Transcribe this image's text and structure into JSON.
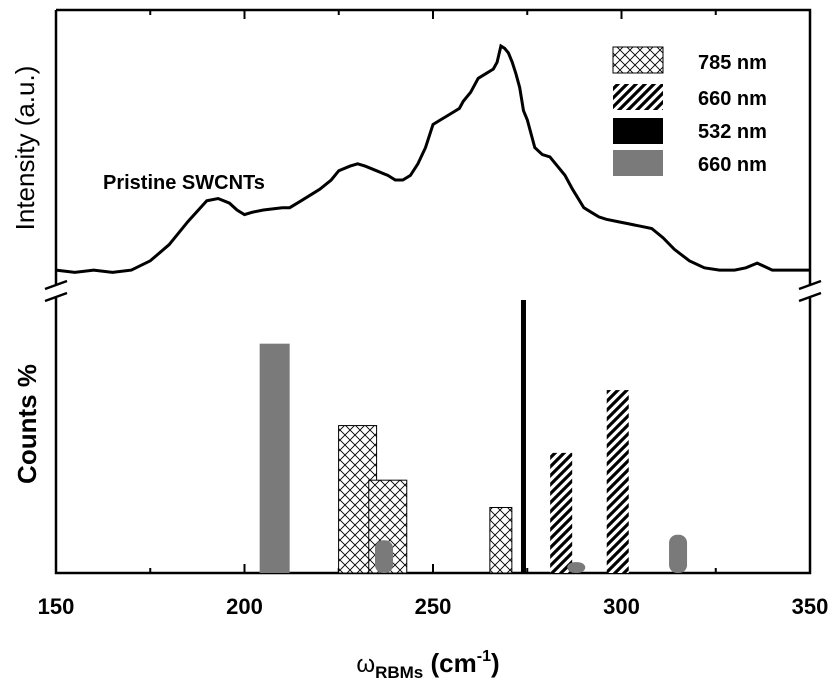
{
  "chart_data": {
    "type": "bar",
    "xlabel": "ω",
    "xlabel_sub": "RBMs",
    "xlabel_unit_pre": " (cm",
    "xlabel_unit_sup": "-1",
    "xlabel_unit_post": ")",
    "xlim": [
      150,
      350
    ],
    "xticks": [
      150,
      200,
      250,
      300,
      350
    ],
    "top_panel": {
      "ylabel": "Intensity (a.u.)",
      "annotation": "Pristine SWCNTs",
      "spectrum": {
        "x": [
          150,
          155,
          160,
          165,
          170,
          175,
          180,
          185,
          190,
          193,
          196,
          198,
          200,
          202,
          205,
          210,
          212,
          215,
          218,
          220,
          223,
          225,
          228,
          230,
          232,
          235,
          238,
          240,
          242,
          244,
          246,
          248,
          250,
          252,
          253,
          255,
          257,
          258,
          260,
          262,
          264,
          266,
          267,
          268,
          269,
          270,
          271,
          272,
          273,
          274,
          275,
          277,
          279,
          281,
          283,
          285,
          287,
          290,
          292,
          294,
          296,
          299,
          302,
          305,
          308,
          311,
          314,
          318,
          322,
          326,
          330,
          333,
          336,
          340,
          345,
          350
        ],
        "y": [
          0.03,
          0.02,
          0.03,
          0.02,
          0.03,
          0.07,
          0.14,
          0.24,
          0.33,
          0.34,
          0.32,
          0.29,
          0.27,
          0.28,
          0.29,
          0.3,
          0.3,
          0.33,
          0.36,
          0.38,
          0.42,
          0.46,
          0.48,
          0.49,
          0.48,
          0.46,
          0.44,
          0.42,
          0.42,
          0.44,
          0.49,
          0.56,
          0.66,
          0.68,
          0.69,
          0.71,
          0.73,
          0.76,
          0.8,
          0.86,
          0.88,
          0.9,
          0.93,
          1.0,
          0.99,
          0.97,
          0.93,
          0.88,
          0.82,
          0.72,
          0.68,
          0.56,
          0.53,
          0.52,
          0.48,
          0.44,
          0.38,
          0.3,
          0.28,
          0.26,
          0.25,
          0.24,
          0.23,
          0.22,
          0.21,
          0.17,
          0.12,
          0.07,
          0.04,
          0.03,
          0.03,
          0.04,
          0.06,
          0.03,
          0.03,
          0.03
        ]
      }
    },
    "bottom_panel": {
      "ylabel": "Counts %",
      "legend": [
        {
          "label": "785 nm",
          "pattern": "crosshatch"
        },
        {
          "label": "660 nm",
          "pattern": "diagonal"
        },
        {
          "label": "532 nm",
          "pattern": "solid-black"
        },
        {
          "label": "660 nm",
          "pattern": "solid-gray"
        }
      ],
      "bars": [
        {
          "series": "660 nm (gray)",
          "x": 208,
          "value": 0.84,
          "pattern": "solid-gray"
        },
        {
          "series": "785 nm",
          "x": 230,
          "value": 0.54,
          "pattern": "crosshatch"
        },
        {
          "series": "785 nm",
          "x": 238,
          "value": 0.34,
          "pattern": "crosshatch"
        },
        {
          "series": "660 nm (gray)",
          "x": 237,
          "value": 0.12,
          "pattern": "solid-gray"
        },
        {
          "series": "785 nm",
          "x": 268,
          "value": 0.24,
          "pattern": "crosshatch"
        },
        {
          "series": "532 nm",
          "x": 274,
          "value": 1.0,
          "pattern": "solid-black"
        },
        {
          "series": "660 nm (hatched)",
          "x": 284,
          "value": 0.44,
          "pattern": "diagonal"
        },
        {
          "series": "660 nm (gray)",
          "x": 288,
          "value": 0.04,
          "pattern": "solid-gray"
        },
        {
          "series": "660 nm (hatched)",
          "x": 299,
          "value": 0.67,
          "pattern": "diagonal"
        },
        {
          "series": "660 nm (gray)",
          "x": 315,
          "value": 0.14,
          "pattern": "solid-gray"
        }
      ]
    },
    "colors": {
      "gray_bar": "#7a7a7a",
      "line": "#000000",
      "hatch": "#000000"
    }
  }
}
